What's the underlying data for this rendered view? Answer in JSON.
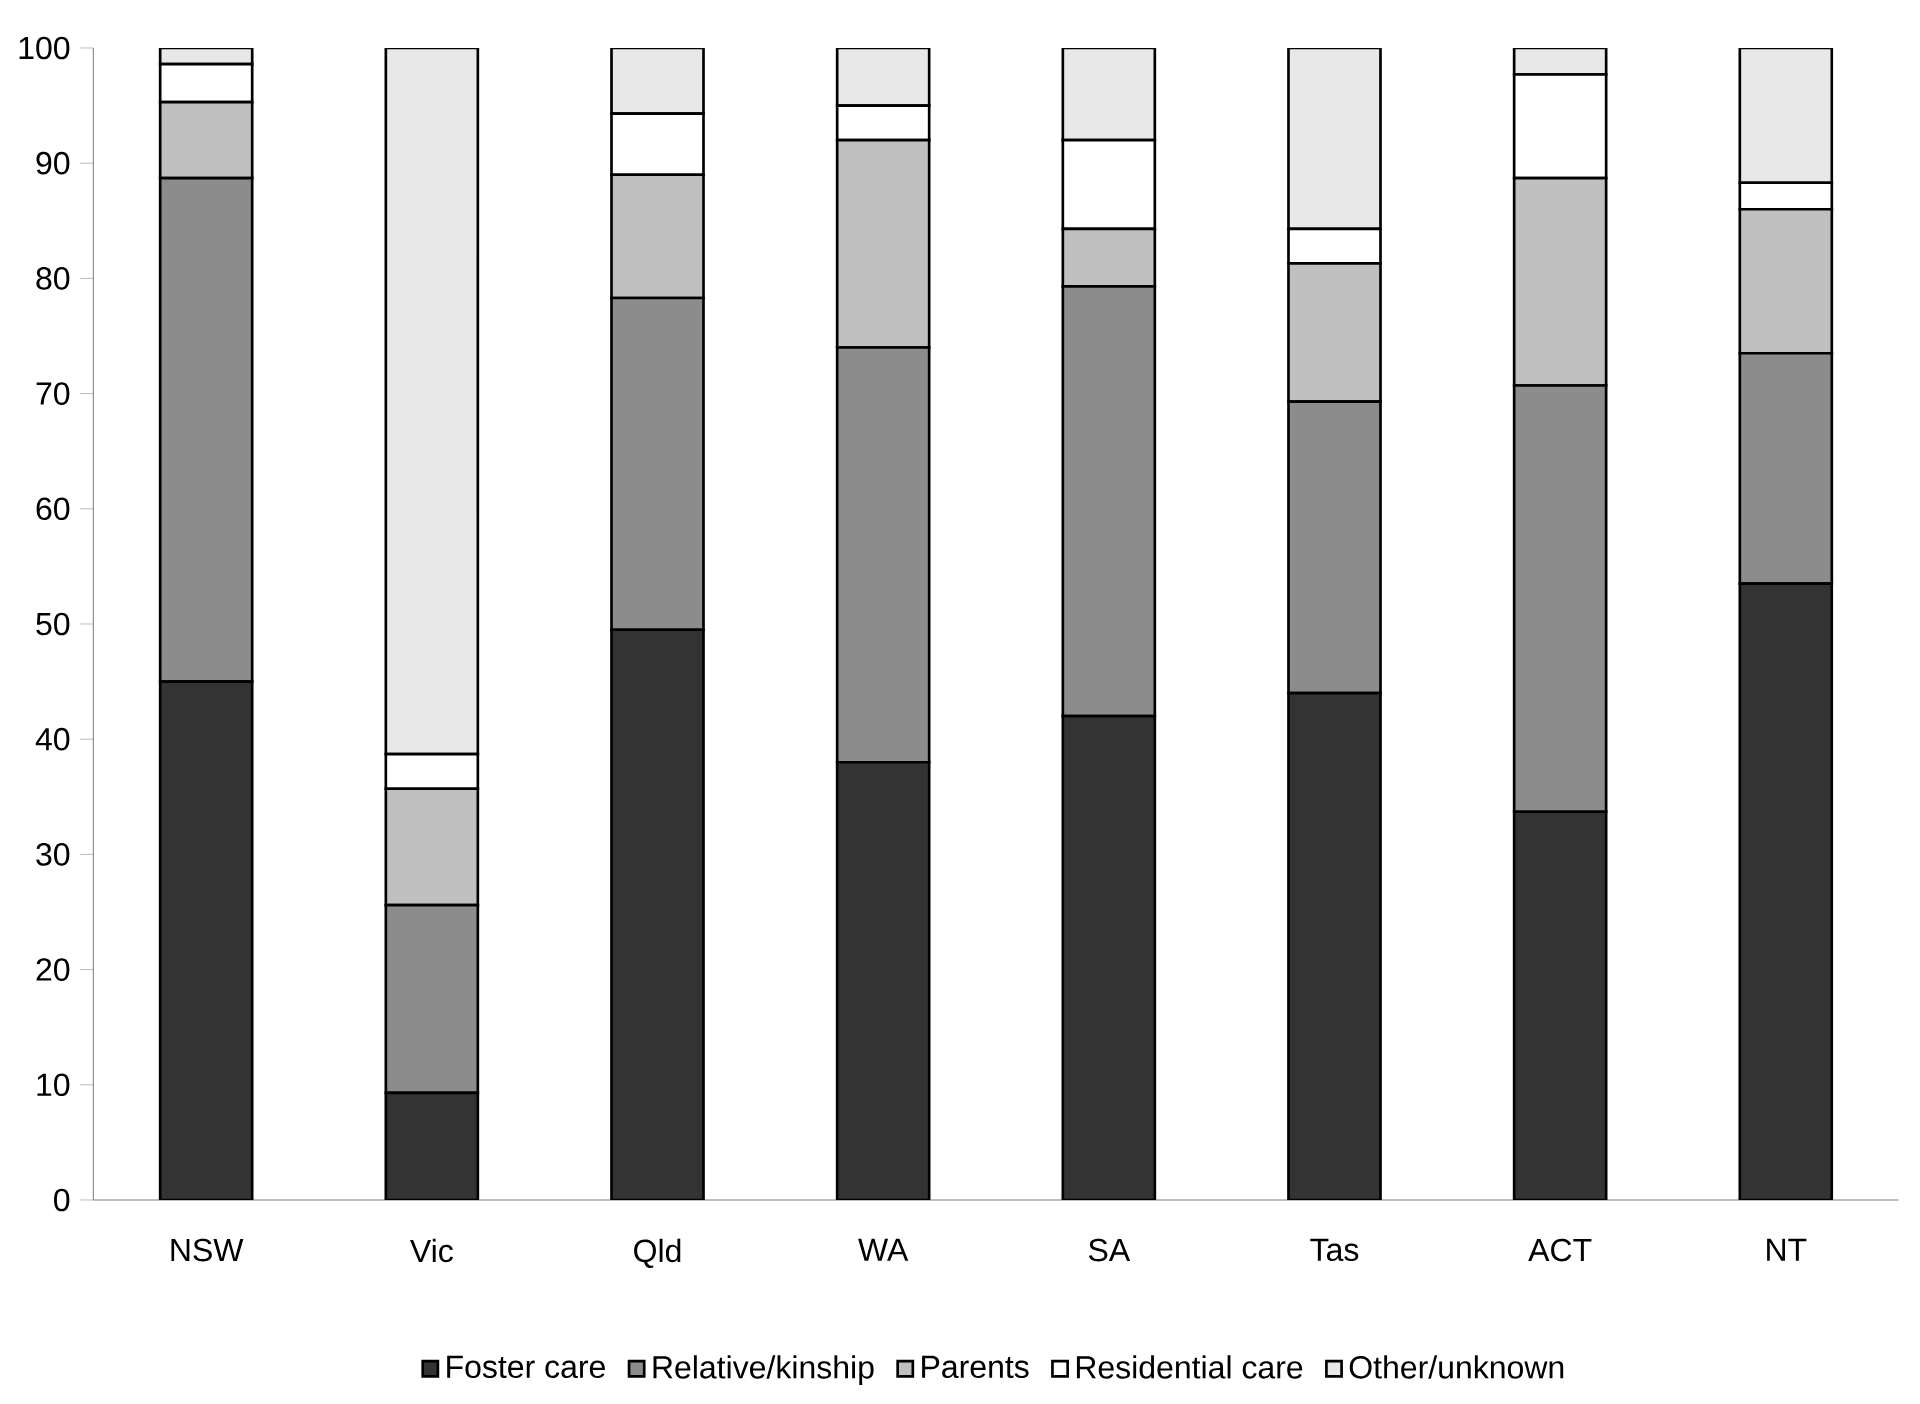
{
  "chart_data": {
    "type": "bar",
    "stacked": true,
    "categories": [
      "NSW",
      "Vic",
      "Qld",
      "WA",
      "SA",
      "Tas",
      "ACT",
      "NT"
    ],
    "series": [
      {
        "name": "Foster care",
        "color": "#333333",
        "values": [
          45,
          9.3,
          49.5,
          38,
          42,
          44,
          33.7,
          53.5
        ]
      },
      {
        "name": "Relative/kinship",
        "color": "#8c8c8c",
        "values": [
          43.7,
          16.3,
          28.8,
          36,
          37.3,
          25.3,
          37,
          20
        ]
      },
      {
        "name": "Parents",
        "color": "#c0c0c0",
        "values": [
          6.6,
          10.1,
          10.7,
          18,
          5,
          12,
          18,
          12.5
        ]
      },
      {
        "name": "Residential care",
        "color": "#ffffff",
        "values": [
          3.3,
          3.0,
          5.3,
          3,
          7.7,
          3,
          9,
          2.3
        ]
      },
      {
        "name": "Other/unknown",
        "color": "#e8e8e8",
        "values": [
          1.4,
          61.3,
          5.7,
          5,
          8,
          15.7,
          2.3,
          11.7
        ]
      }
    ],
    "ylim": [
      0,
      100
    ],
    "yticks": [
      0,
      10,
      20,
      30,
      40,
      50,
      60,
      70,
      80,
      90,
      100
    ],
    "grid": false,
    "legend": "bottom"
  }
}
